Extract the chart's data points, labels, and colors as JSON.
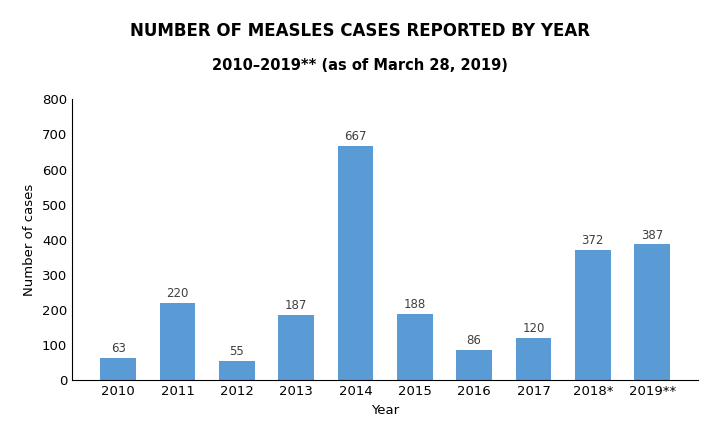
{
  "categories": [
    "2010",
    "2011",
    "2012",
    "2013",
    "2014",
    "2015",
    "2016",
    "2017",
    "2018*",
    "2019**"
  ],
  "values": [
    63,
    220,
    55,
    187,
    667,
    188,
    86,
    120,
    372,
    387
  ],
  "bar_color": "#5B9BD5",
  "title": "NUMBER OF MEASLES CASES REPORTED BY YEAR",
  "subtitle": "2010–2019** (as of March 28, 2019)",
  "xlabel": "Year",
  "ylabel": "Number of cases",
  "ylim": [
    0,
    800
  ],
  "yticks": [
    0,
    100,
    200,
    300,
    400,
    500,
    600,
    700,
    800
  ],
  "title_fontsize": 12,
  "subtitle_fontsize": 10.5,
  "label_fontsize": 9.5,
  "tick_fontsize": 9.5,
  "value_fontsize": 8.5,
  "background_color": "#ffffff"
}
